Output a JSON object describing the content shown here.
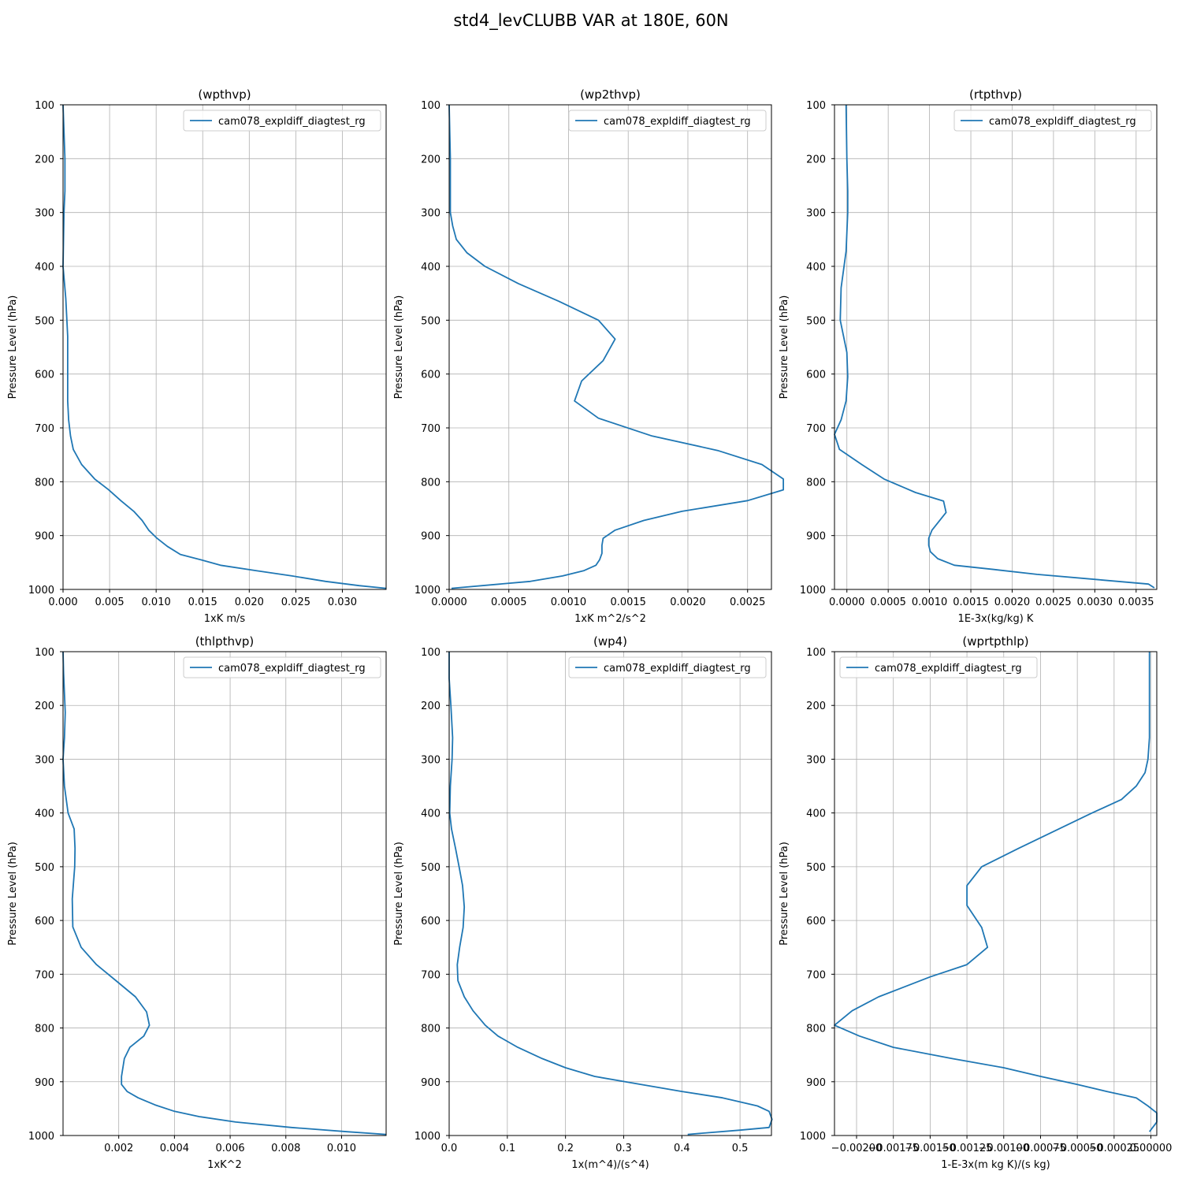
{
  "figure_title": "std4_levCLUBB VAR at 180E, 60N",
  "colors": {
    "line": "#1f77b4",
    "grid": "#b0b0b0",
    "axes": "#000000"
  },
  "chart_data": [
    {
      "type": "line",
      "title": "(wpthvp)",
      "xlabel": "1xK m/s",
      "ylabel": "Pressure Level (hPa)",
      "xlim": [
        0.0,
        0.0347
      ],
      "ylim": [
        1000,
        100
      ],
      "y_inverted": true,
      "xticks": [
        "0.000",
        "0.005",
        "0.010",
        "0.015",
        "0.020",
        "0.025",
        "0.030"
      ],
      "xtick_values": [
        0.0,
        0.005,
        0.01,
        0.015,
        0.02,
        0.025,
        0.03
      ],
      "yticks": [
        100,
        200,
        300,
        400,
        500,
        600,
        700,
        800,
        900,
        1000
      ],
      "grid": true,
      "legend_position": "top-right",
      "series": [
        {
          "name": "cam078_expldiff_diagtest_rg",
          "x": [
            0.0,
            0.0002,
            0.0002,
            0.0001,
            0.0,
            0.0003,
            0.0005,
            0.0005,
            0.0005,
            0.0006,
            0.0008,
            0.0011,
            0.002,
            0.0034,
            0.0049,
            0.0062,
            0.0076,
            0.0085,
            0.0092,
            0.0101,
            0.0112,
            0.0126,
            0.0148,
            0.0169,
            0.0207,
            0.0246,
            0.0282,
            0.0318,
            0.0347
          ],
          "y": [
            100,
            200,
            260,
            300,
            400,
            460,
            530,
            600,
            650,
            685,
            715,
            740,
            768,
            795,
            815,
            835,
            855,
            872,
            890,
            905,
            920,
            935,
            945,
            955,
            965,
            975,
            985,
            993,
            998
          ]
        }
      ]
    },
    {
      "type": "line",
      "title": "(wp2thvp)",
      "xlabel": "1xK m^2/s^2",
      "ylabel": "Pressure Level (hPa)",
      "xlim": [
        0.0,
        0.0027
      ],
      "ylim": [
        1000,
        100
      ],
      "y_inverted": true,
      "xticks": [
        "0.0000",
        "0.0005",
        "0.0010",
        "0.0015",
        "0.0020",
        "0.0025"
      ],
      "xtick_values": [
        0.0,
        0.0005,
        0.001,
        0.0015,
        0.002,
        0.0025
      ],
      "yticks": [
        100,
        200,
        300,
        400,
        500,
        600,
        700,
        800,
        900,
        1000
      ],
      "grid": true,
      "legend_position": "top-right",
      "series": [
        {
          "name": "cam078_expldiff_diagtest_rg",
          "x": [
            0.0,
            1e-05,
            1e-05,
            1e-05,
            3e-05,
            6e-05,
            0.00015,
            0.0003,
            0.00058,
            0.00092,
            0.00125,
            0.00139,
            0.00129,
            0.00111,
            0.00105,
            0.00125,
            0.0017,
            0.00225,
            0.00262,
            0.0028,
            0.0028,
            0.0025,
            0.00195,
            0.00163,
            0.00139,
            0.00129,
            0.00128,
            0.00128,
            0.00126,
            0.00123,
            0.00113,
            0.00095,
            0.00068,
            2e-05
          ],
          "y": [
            100,
            200,
            260,
            300,
            325,
            350,
            375,
            400,
            432,
            465,
            500,
            535,
            575,
            613,
            650,
            682,
            715,
            742,
            768,
            795,
            815,
            835,
            855,
            872,
            890,
            905,
            918,
            933,
            945,
            955,
            965,
            975,
            985,
            998
          ]
        }
      ]
    },
    {
      "type": "line",
      "title": "(rtpthvp)",
      "xlabel": "1E-3x(kg/kg) K",
      "ylabel": "Pressure Level (hPa)",
      "xlim": [
        -0.00015,
        0.00375
      ],
      "ylim": [
        1000,
        100
      ],
      "y_inverted": true,
      "xticks": [
        "0.0000",
        "0.0005",
        "0.0010",
        "0.0015",
        "0.0020",
        "0.0025",
        "0.0030",
        "0.0035"
      ],
      "xtick_values": [
        0.0,
        0.0005,
        0.001,
        0.0015,
        0.002,
        0.0025,
        0.003,
        0.0035
      ],
      "yticks": [
        100,
        200,
        300,
        400,
        500,
        600,
        700,
        800,
        900,
        1000
      ],
      "grid": true,
      "legend_position": "top-right",
      "series": [
        {
          "name": "cam078_expldiff_diagtest_rg",
          "x": [
            -1e-05,
            0.0,
            1e-05,
            1e-05,
            -1e-05,
            -7e-05,
            -8e-05,
            0.0,
            1e-05,
            -1e-05,
            -7e-05,
            -0.00015,
            -9e-05,
            0.00018,
            0.00045,
            0.00083,
            0.00117,
            0.0012,
            0.00103,
            0.00099,
            0.00099,
            0.00101,
            0.0011,
            0.0013,
            0.00178,
            0.0023,
            0.00305,
            0.00365,
            0.00372
          ],
          "y": [
            100,
            200,
            260,
            300,
            372,
            440,
            500,
            560,
            605,
            650,
            685,
            712,
            740,
            768,
            795,
            820,
            836,
            857,
            890,
            905,
            918,
            930,
            943,
            955,
            963,
            972,
            982,
            990,
            997
          ]
        }
      ]
    },
    {
      "type": "line",
      "title": "(thlpthvp)",
      "xlabel": "1xK^2",
      "ylabel": "Pressure Level (hPa)",
      "xlim": [
        0.0,
        0.0116
      ],
      "ylim": [
        1000,
        100
      ],
      "y_inverted": true,
      "xticks": [
        "0.002",
        "0.004",
        "0.006",
        "0.008",
        "0.010"
      ],
      "xtick_values": [
        0.002,
        0.004,
        0.006,
        0.008,
        0.01
      ],
      "yticks": [
        100,
        200,
        300,
        400,
        500,
        600,
        700,
        800,
        900,
        1000
      ],
      "grid": true,
      "legend_position": "top-right",
      "series": [
        {
          "name": "cam078_expldiff_diagtest_rg",
          "x": [
            0.0,
            2e-05,
            8e-05,
            5e-05,
            0.0,
            5e-05,
            0.00018,
            0.0004,
            0.00043,
            0.00042,
            0.00033,
            0.00035,
            0.00065,
            0.0012,
            0.0019,
            0.0026,
            0.003,
            0.0031,
            0.0029,
            0.0024,
            0.0022,
            0.0021,
            0.0021,
            0.0023,
            0.0027,
            0.0033,
            0.004,
            0.0049,
            0.0062,
            0.0082,
            0.0102,
            0.0116
          ],
          "y": [
            100,
            140,
            213,
            260,
            300,
            350,
            400,
            430,
            466,
            500,
            560,
            612,
            650,
            682,
            712,
            742,
            770,
            795,
            815,
            836,
            857,
            890,
            905,
            918,
            930,
            943,
            955,
            965,
            975,
            985,
            993,
            998
          ]
        }
      ]
    },
    {
      "type": "line",
      "title": "(wp4)",
      "xlabel": "1x(m^4)/(s^4)",
      "ylabel": "Pressure Level (hPa)",
      "xlim": [
        0.0,
        0.554
      ],
      "ylim": [
        1000,
        100
      ],
      "y_inverted": true,
      "xticks": [
        "0.0",
        "0.1",
        "0.2",
        "0.3",
        "0.4",
        "0.5"
      ],
      "xtick_values": [
        0.0,
        0.1,
        0.2,
        0.3,
        0.4,
        0.5
      ],
      "yticks": [
        100,
        200,
        300,
        400,
        500,
        600,
        700,
        800,
        900,
        1000
      ],
      "grid": true,
      "legend_position": "top-right",
      "series": [
        {
          "name": "cam078_expldiff_diagtest_rg",
          "x": [
            0.0,
            0.0,
            0.003,
            0.006,
            0.005,
            0.002,
            0.001,
            0.004,
            0.011,
            0.017,
            0.023,
            0.026,
            0.024,
            0.018,
            0.014,
            0.015,
            0.026,
            0.041,
            0.062,
            0.084,
            0.118,
            0.16,
            0.2,
            0.25,
            0.33,
            0.4,
            0.47,
            0.53,
            0.55,
            0.555,
            0.55,
            0.5,
            0.41
          ],
          "y": [
            100,
            150,
            200,
            260,
            300,
            350,
            400,
            430,
            466,
            500,
            535,
            575,
            613,
            650,
            682,
            712,
            742,
            768,
            795,
            815,
            836,
            857,
            874,
            890,
            905,
            918,
            930,
            945,
            955,
            970,
            985,
            990,
            998
          ]
        }
      ]
    },
    {
      "type": "line",
      "title": "(wprtpthlp)",
      "xlabel": "1-E-3x(m kg K)/(s kg)",
      "ylabel": "Pressure Level (hPa)",
      "xlim": [
        -0.00215,
        4e-05
      ],
      "ylim": [
        1000,
        100
      ],
      "y_inverted": true,
      "xticks": [
        "−0.00200",
        "−0.00175",
        "−0.00150",
        "−0.00125",
        "−0.00100",
        "−0.00075",
        "−0.00050",
        "−0.00025",
        "0.00000"
      ],
      "xtick_values": [
        -0.002,
        -0.00175,
        -0.0015,
        -0.00125,
        -0.001,
        -0.00075,
        -0.0005,
        -0.00025,
        0.0
      ],
      "yticks": [
        100,
        200,
        300,
        400,
        500,
        600,
        700,
        800,
        900,
        1000
      ],
      "grid": true,
      "legend_position": "top-left",
      "series": [
        {
          "name": "cam078_expldiff_diagtest_rg",
          "x": [
            -1e-05,
            -1e-05,
            -1e-05,
            -2e-05,
            -4e-05,
            -0.0001,
            -0.0002,
            -0.0004,
            -0.0009,
            -0.00115,
            -0.00125,
            -0.00125,
            -0.00115,
            -0.00111,
            -0.00125,
            -0.0015,
            -0.00185,
            -0.00203,
            -0.00215,
            -0.00198,
            -0.00175,
            -0.00135,
            -0.001,
            -0.00075,
            -0.0005,
            -0.0003,
            -0.0001,
            -2e-05,
            4e-05,
            4e-05,
            -1e-05
          ],
          "y": [
            100,
            200,
            260,
            300,
            325,
            350,
            375,
            400,
            466,
            500,
            535,
            572,
            613,
            650,
            682,
            705,
            742,
            768,
            795,
            815,
            836,
            857,
            874,
            890,
            905,
            918,
            930,
            945,
            958,
            975,
            993
          ]
        }
      ]
    }
  ]
}
